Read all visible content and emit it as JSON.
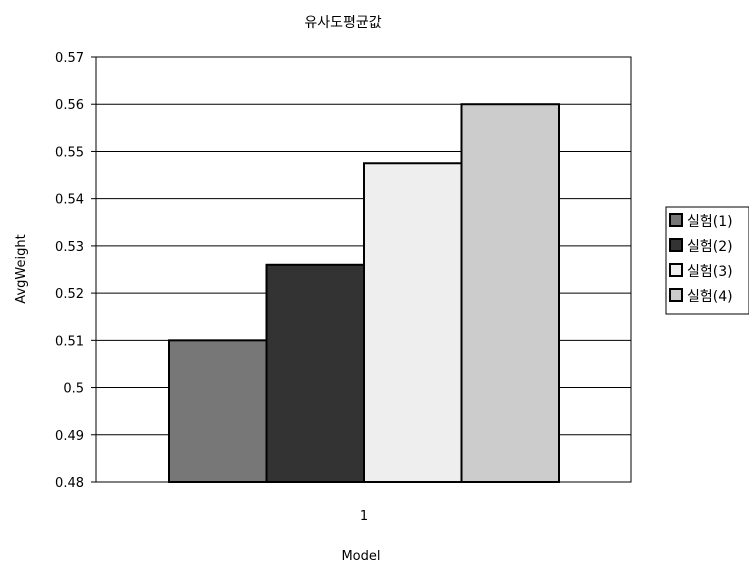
{
  "chart_data": {
    "type": "bar",
    "title": "유사도평균값",
    "xlabel": "Model",
    "ylabel": "AvgWeight",
    "categories": [
      "1"
    ],
    "ylim": [
      0.48,
      0.57
    ],
    "yticks": [
      "0.48",
      "0.49",
      "0.5",
      "0.51",
      "0.52",
      "0.53",
      "0.54",
      "0.55",
      "0.56",
      "0.57"
    ],
    "grid": true,
    "legend_position": "right",
    "series": [
      {
        "name": "실험(1)",
        "values": [
          0.51
        ],
        "color": "#777777"
      },
      {
        "name": "실험(2)",
        "values": [
          0.526
        ],
        "color": "#333333"
      },
      {
        "name": "실험(3)",
        "values": [
          0.5475
        ],
        "color": "#eeeeee"
      },
      {
        "name": "실험(4)",
        "values": [
          0.56
        ],
        "color": "#cccccc"
      }
    ]
  }
}
